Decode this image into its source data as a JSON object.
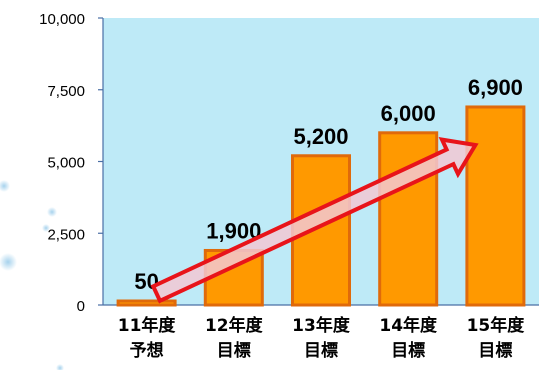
{
  "chart_data": {
    "type": "bar",
    "title": "",
    "xlabel": "",
    "ylabel": "",
    "categories": [
      [
        "11年度",
        "予想"
      ],
      [
        "12年度",
        "目標"
      ],
      [
        "13年度",
        "目標"
      ],
      [
        "14年度",
        "目標"
      ],
      [
        "15年度",
        "目標"
      ]
    ],
    "values": [
      50,
      1900,
      5200,
      6000,
      6900
    ],
    "data_labels": [
      "50",
      "1,900",
      "5,200",
      "6,000",
      "6,900"
    ],
    "ylim": [
      0,
      10000
    ],
    "yticks": [
      0,
      2500,
      5000,
      7500,
      10000
    ],
    "ytick_labels": [
      "0",
      "2,500",
      "5,000",
      "7,500",
      "10,000"
    ],
    "grid": false,
    "legend": "none",
    "annotation": "upward-trend-arrow",
    "colors": {
      "plot_background": "#BEEAF7",
      "bar_fill": "#FF9900",
      "bar_edge": "#E06A0A",
      "arrow_stroke": "#E8141A",
      "arrow_fill": "#F2C8D4",
      "axis": "#4A6FA5"
    }
  }
}
